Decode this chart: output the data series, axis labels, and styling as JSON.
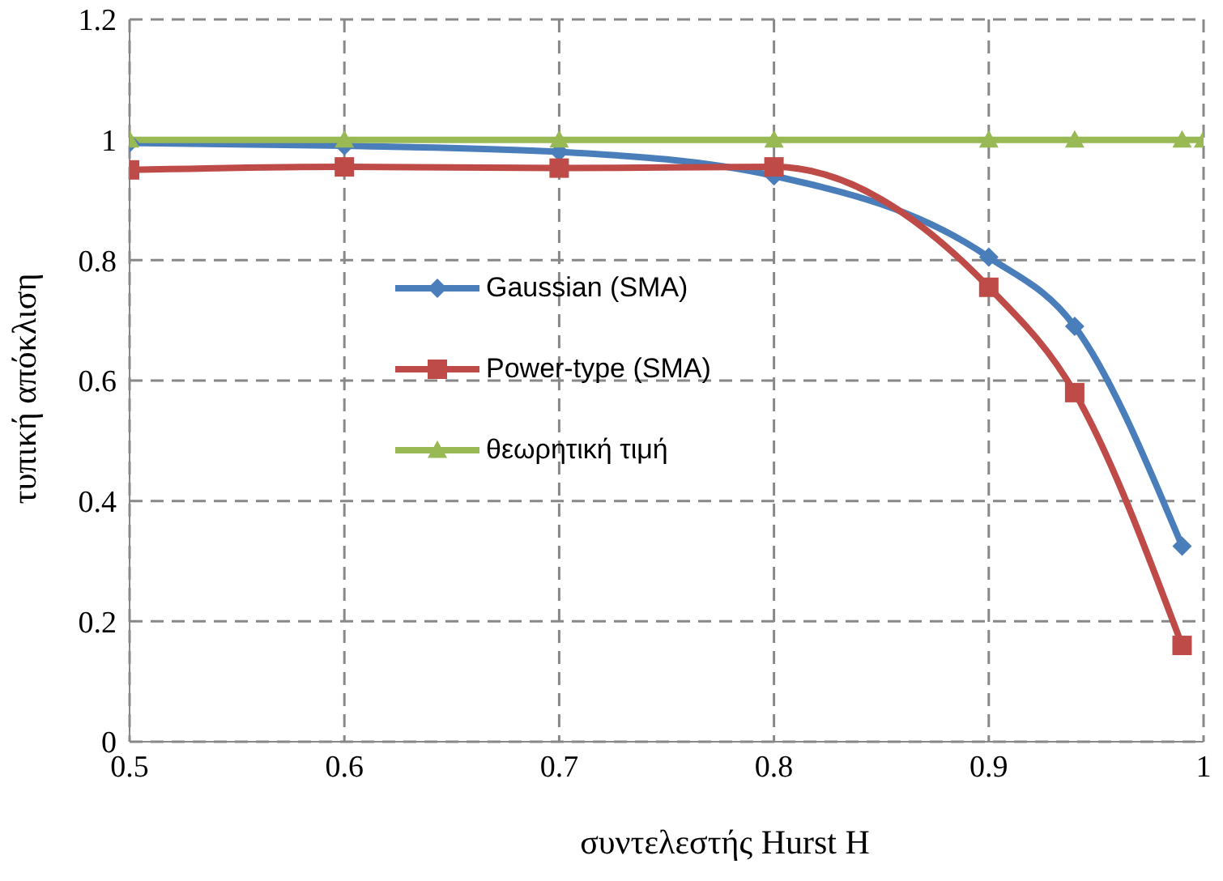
{
  "chart_data": {
    "type": "line",
    "xlabel": "συντελεστής Hurst H",
    "ylabel": "τυπική απόκλιση",
    "x": [
      0.5,
      0.6,
      0.7,
      0.8,
      0.9,
      0.94,
      0.99
    ],
    "series": [
      {
        "name": "Gaussian (SMA)",
        "color": "#4a7ebb",
        "marker": "diamond",
        "values": [
          0.995,
          0.99,
          0.98,
          0.94,
          0.805,
          0.69,
          0.325
        ]
      },
      {
        "name": "Power-type (SMA)",
        "color": "#be4b48",
        "marker": "square",
        "values": [
          0.95,
          0.955,
          0.953,
          0.955,
          0.755,
          0.58,
          0.16
        ]
      },
      {
        "name": "θεωρητική τιμή",
        "color": "#98b954",
        "marker": "triangle",
        "x": [
          0.5,
          0.6,
          0.7,
          0.8,
          0.9,
          0.94,
          0.99,
          1.0
        ],
        "values": [
          1,
          1,
          1,
          1,
          1,
          1,
          1,
          1
        ]
      }
    ],
    "xlim": [
      0.5,
      1
    ],
    "xticks": [
      0.5,
      0.6,
      0.7,
      0.8,
      0.9,
      1
    ],
    "ylim": [
      0,
      1.2
    ],
    "yticks": [
      0,
      0.2,
      0.4,
      0.6,
      0.8,
      1,
      1.2
    ],
    "grid": true,
    "line_style": "solid",
    "legend": "left"
  }
}
